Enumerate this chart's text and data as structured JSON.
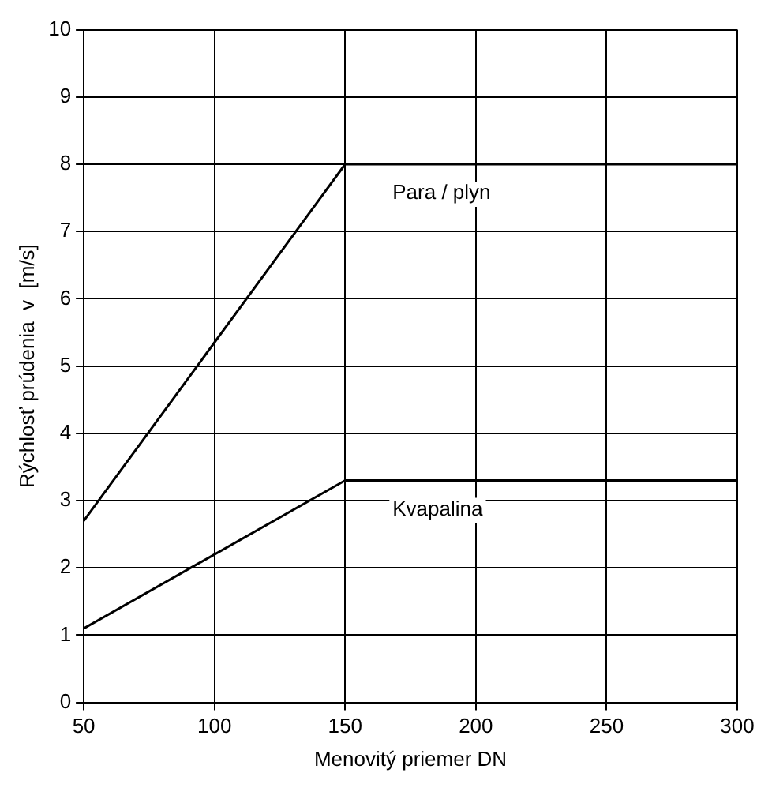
{
  "chart_data": {
    "type": "line",
    "xlabel": "Menovitý priemer DN",
    "ylabel": "Rýchlosť prúdenia  v  [m/s]",
    "xlim": [
      50,
      300
    ],
    "xticks": [
      50,
      100,
      150,
      200,
      250,
      300
    ],
    "ylim": [
      0,
      10
    ],
    "yticks": [
      0,
      1,
      2,
      3,
      4,
      5,
      6,
      7,
      8,
      9,
      10
    ],
    "grid": true,
    "legend": false,
    "series": [
      {
        "name": "Para / plyn",
        "color": "#000000",
        "x": [
          50,
          150,
          300
        ],
        "values": [
          2.7,
          8,
          8
        ]
      },
      {
        "name": "Kvapalina",
        "color": "#000000",
        "x": [
          50,
          150,
          300
        ],
        "values": [
          1.1,
          3.3,
          3.3
        ]
      }
    ]
  }
}
